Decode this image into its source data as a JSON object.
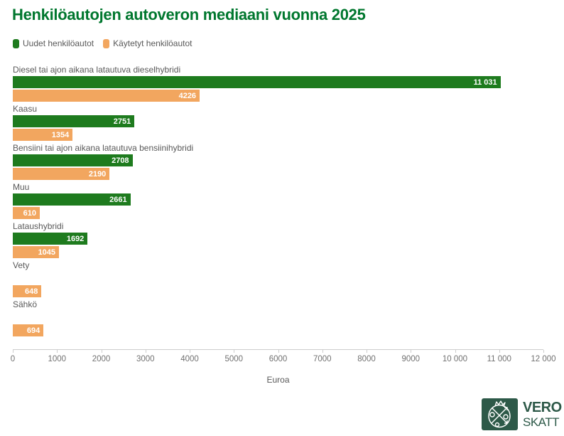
{
  "title": "Henkilöautojen autoveron mediaani vuonna 2025",
  "colors": {
    "title_green": "#00772e",
    "bar_green": "#1e7b1e",
    "bar_orange": "#f2a65f",
    "label_gray": "#595959",
    "tick_gray": "#707070",
    "axis_line": "#cccccc",
    "logo_green": "#2d5948"
  },
  "chart_data": {
    "type": "bar",
    "orientation": "horizontal",
    "title": "Henkilöautojen autoveron mediaani vuonna 2025",
    "xlabel": "Euroa",
    "xlim": [
      0,
      12000
    ],
    "grid": false,
    "legend_position": "top",
    "x_ticks": [
      0,
      1000,
      2000,
      3000,
      4000,
      5000,
      6000,
      7000,
      8000,
      9000,
      10000,
      11000,
      12000
    ],
    "x_tick_labels": [
      "0",
      "1000",
      "2000",
      "3000",
      "4000",
      "5000",
      "6000",
      "7000",
      "8000",
      "9000",
      "10 000",
      "11 000",
      "12 000"
    ],
    "categories": [
      "Diesel tai ajon aikana latautuva dieselhybridi",
      "Kaasu",
      "Bensiini tai ajon aikana latautuva bensiinihybridi",
      "Muu",
      "Lataushybridi",
      "Vety",
      "Sähkö"
    ],
    "series": [
      {
        "name": "Uudet henkilöautot",
        "color": "#1e7b1e",
        "values": [
          11031,
          2751,
          2708,
          2661,
          1692,
          null,
          null
        ],
        "value_labels": [
          "11 031",
          "2751",
          "2708",
          "2661",
          "1692",
          null,
          null
        ]
      },
      {
        "name": "Käytetyt henkilöautot",
        "color": "#f2a65f",
        "values": [
          4226,
          1354,
          2190,
          610,
          1045,
          648,
          694
        ],
        "value_labels": [
          "4226",
          "1354",
          "2190",
          "610",
          "1045",
          "648",
          "694"
        ]
      }
    ]
  },
  "logo": {
    "line1": "VERO",
    "line2": "SKATT"
  }
}
